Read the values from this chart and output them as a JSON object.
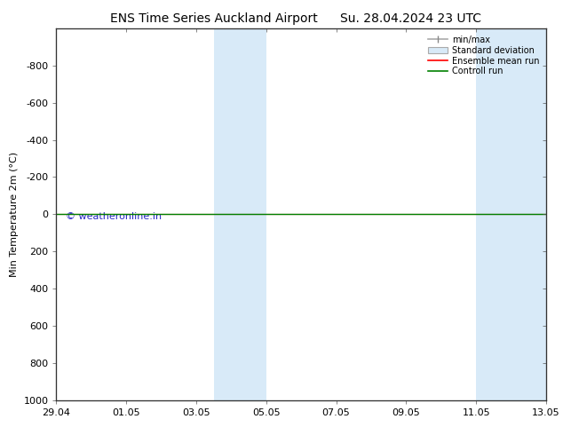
{
  "title_left": "ENS Time Series Auckland Airport",
  "title_right": "Su. 28.04.2024 23 UTC",
  "ylabel": "Min Temperature 2m (°C)",
  "watermark": "© weatheronline.in",
  "ylim_bottom": 1000,
  "ylim_top": -1000,
  "yticks": [
    -800,
    -600,
    -400,
    -200,
    0,
    200,
    400,
    600,
    800,
    1000
  ],
  "xtick_labels": [
    "29.04",
    "01.05",
    "03.05",
    "05.05",
    "07.05",
    "09.05",
    "11.05",
    "13.05"
  ],
  "xtick_positions": [
    0,
    2,
    4,
    6,
    8,
    10,
    12,
    14
  ],
  "shaded_regions": [
    {
      "x_start": 4.5,
      "x_end": 6.0
    },
    {
      "x_start": 12.0,
      "x_end": 14.0
    }
  ],
  "horizontal_line_y": 0,
  "line_color_ensemble": "#ff0000",
  "line_color_control": "#008000",
  "background_color": "#ffffff",
  "plot_bg_color": "#ffffff",
  "shaded_color": "#d8eaf8",
  "legend_entries": [
    "min/max",
    "Standard deviation",
    "Ensemble mean run",
    "Controll run"
  ],
  "title_fontsize": 10,
  "axis_label_fontsize": 8,
  "tick_fontsize": 8
}
